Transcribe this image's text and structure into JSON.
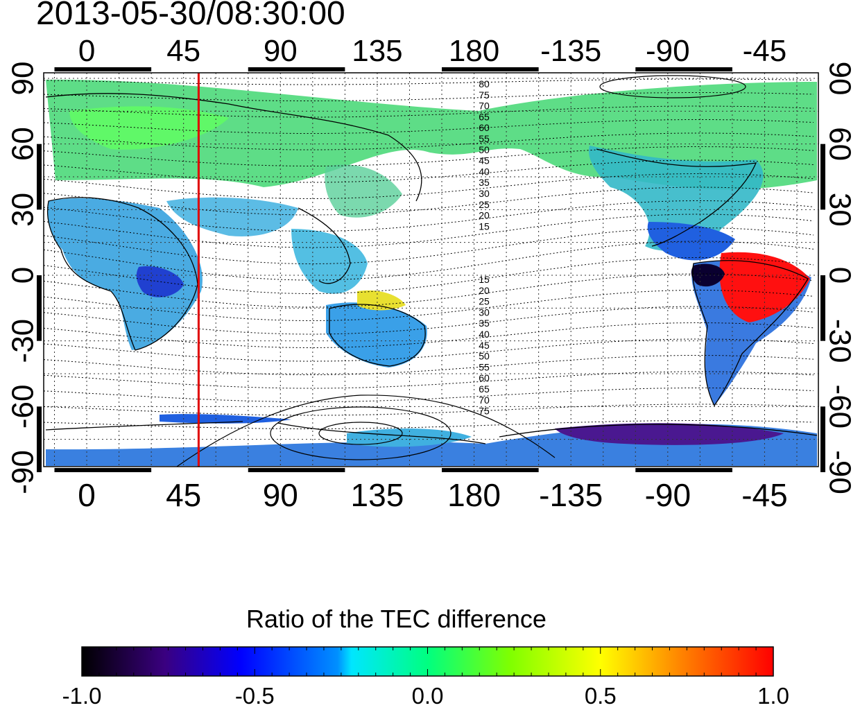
{
  "title": "2013-05-30/08:30:00",
  "map": {
    "top_lon_labels": [
      "0",
      "45",
      "90",
      "135",
      "180",
      "-135",
      "-90",
      "-45"
    ],
    "bottom_lon_labels": [
      "0",
      "45",
      "90",
      "135",
      "180",
      "-135",
      "-90",
      "-45"
    ],
    "left_lat_labels": [
      "90",
      "60",
      "30",
      "0",
      "-30",
      "-60",
      "-90"
    ],
    "right_lat_labels": [
      "90",
      "60",
      "30",
      "0",
      "-30",
      "-60",
      "-90"
    ],
    "contour_labels_north": [
      "80",
      "75",
      "70",
      "65",
      "60",
      "55",
      "50",
      "45",
      "40",
      "35",
      "30",
      "25",
      "20",
      "15"
    ],
    "contour_labels_south": [
      "15",
      "20",
      "25",
      "30",
      "35",
      "40",
      "45",
      "50",
      "55",
      "60",
      "65",
      "70",
      "75"
    ],
    "marker_longitude": 52,
    "marker_color": "#e00000"
  },
  "colorbar": {
    "title": "Ratio of the TEC difference",
    "tick_labels": [
      "-1.0",
      "-0.5",
      "0.0",
      "0.5",
      "1.0"
    ],
    "colors": [
      "#000000",
      "#3a0080",
      "#0000ff",
      "#0090ff",
      "#00ffff",
      "#00ff40",
      "#80ff00",
      "#ffff00",
      "#ff9000",
      "#ff0000"
    ]
  }
}
